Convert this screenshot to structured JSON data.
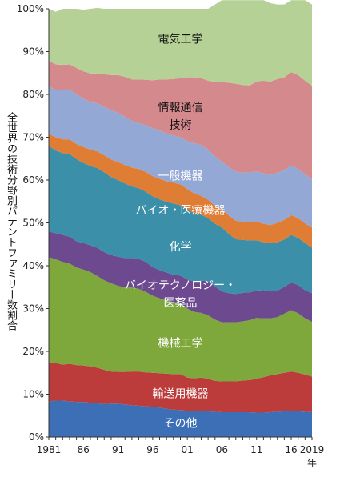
{
  "chart_data": {
    "type": "area",
    "stacked": true,
    "ylabel": "全世界の技術分野別パテントファミリー数割合",
    "xlabel": "",
    "year_suffix": "年",
    "ylim": [
      0,
      100
    ],
    "yticks": [
      "0%",
      "10%",
      "20%",
      "30%",
      "40%",
      "50%",
      "60%",
      "70%",
      "80%",
      "90%",
      "100%"
    ],
    "x": [
      1981,
      1982,
      1983,
      1984,
      1985,
      1986,
      1987,
      1988,
      1989,
      1990,
      1991,
      1992,
      1993,
      1994,
      1995,
      1996,
      1997,
      1998,
      1999,
      2000,
      2001,
      2002,
      2003,
      2004,
      2005,
      2006,
      2007,
      2008,
      2009,
      2010,
      2011,
      2012,
      2013,
      2014,
      2015,
      2016,
      2017,
      2018,
      2019
    ],
    "xtick_labels": [
      {
        "year": 1981,
        "label": "1981"
      },
      {
        "year": 1986,
        "label": "86"
      },
      {
        "year": 1991,
        "label": "91"
      },
      {
        "year": 1996,
        "label": "96"
      },
      {
        "year": 2001,
        "label": "01"
      },
      {
        "year": 2006,
        "label": "06"
      },
      {
        "year": 2011,
        "label": "11"
      },
      {
        "year": 2016,
        "label": "16"
      },
      {
        "year": 2019,
        "label": "2019"
      }
    ],
    "grid": false,
    "series": [
      {
        "name": "その他",
        "color": "#3d6fb6",
        "label_lines": [
          "その他"
        ],
        "label_color": "white",
        "label_year": 2000,
        "label_value": 3.3,
        "values": [
          8.3,
          8.5,
          8.5,
          8.3,
          8.2,
          8.2,
          8.0,
          7.9,
          7.7,
          7.8,
          7.8,
          7.6,
          7.4,
          7.3,
          7.2,
          7.0,
          6.9,
          6.6,
          6.4,
          6.3,
          6.1,
          6.1,
          6.0,
          6.0,
          5.9,
          5.8,
          5.8,
          5.8,
          5.8,
          5.8,
          5.7,
          5.7,
          5.8,
          5.9,
          6.0,
          6.1,
          6.0,
          5.9,
          5.8
        ]
      },
      {
        "name": "輸送用機器",
        "color": "#bb3c3b",
        "label_lines": [
          "輸送用機器"
        ],
        "label_color": "white",
        "label_year": 2000,
        "label_value": 10.2,
        "values": [
          9.2,
          8.8,
          8.4,
          8.8,
          8.6,
          8.5,
          8.5,
          8.3,
          8.0,
          7.5,
          7.4,
          7.6,
          7.9,
          8.0,
          7.9,
          8.0,
          8.0,
          8.2,
          8.3,
          8.4,
          7.8,
          7.6,
          7.9,
          7.6,
          7.2,
          7.2,
          7.2,
          7.2,
          7.4,
          7.5,
          7.9,
          8.3,
          8.6,
          8.8,
          9.0,
          9.2,
          9.0,
          8.7,
          8.3
        ]
      },
      {
        "name": "機械工学",
        "color": "#7ea83b",
        "label_lines": [
          "機械工学"
        ],
        "label_color": "white",
        "label_year": 2000,
        "label_value": 22.0,
        "values": [
          24.5,
          24.2,
          24.0,
          23.4,
          22.8,
          22.4,
          22.0,
          21.4,
          20.9,
          20.6,
          20.1,
          19.7,
          19.6,
          19.3,
          18.8,
          18.0,
          17.5,
          17.1,
          16.8,
          16.6,
          16.1,
          15.5,
          15.1,
          14.8,
          14.3,
          13.8,
          13.8,
          13.8,
          13.8,
          14.0,
          14.2,
          13.7,
          13.3,
          13.3,
          13.8,
          14.3,
          13.9,
          13.1,
          12.8
        ]
      },
      {
        "name": "バイオテクノロジー・医薬品",
        "color": "#6d4a90",
        "label_lines": [
          "バイオテクノロジー・",
          "医薬品"
        ],
        "label_color": "white",
        "label_year": 2000,
        "label_value": 33.5,
        "values": [
          6.0,
          6.1,
          6.3,
          6.3,
          6.1,
          6.2,
          6.3,
          6.6,
          6.6,
          6.6,
          6.8,
          6.9,
          6.9,
          7.0,
          7.0,
          6.7,
          6.6,
          6.5,
          6.4,
          6.4,
          6.8,
          7.1,
          7.5,
          8.0,
          7.8,
          7.2,
          6.8,
          6.6,
          6.7,
          6.5,
          6.4,
          6.6,
          6.3,
          6.2,
          6.3,
          6.5,
          6.6,
          6.6,
          6.7
        ]
      },
      {
        "name": "化学",
        "color": "#3b8fa8",
        "label_lines": [
          "化学"
        ],
        "label_color": "white",
        "label_year": 2000,
        "label_value": 44.5,
        "values": [
          20.0,
          19.3,
          19.1,
          19.3,
          19.2,
          18.7,
          18.5,
          18.6,
          18.6,
          18.2,
          17.9,
          17.4,
          16.7,
          16.5,
          16.4,
          16.5,
          16.5,
          16.5,
          16.6,
          16.4,
          16.3,
          16.0,
          15.4,
          14.7,
          14.6,
          14.9,
          13.8,
          12.8,
          12.3,
          12.1,
          11.7,
          11.2,
          11.2,
          11.3,
          11.0,
          11.1,
          11.0,
          11.0,
          10.6
        ]
      },
      {
        "name": "バイオ・医療機器",
        "color": "#e07d35",
        "label_lines": [
          "バイオ・医療機器"
        ],
        "label_color": "white",
        "label_year": 2000,
        "label_value": 53.0,
        "values": [
          2.8,
          3.1,
          3.2,
          3.4,
          3.5,
          3.7,
          3.8,
          3.9,
          4.0,
          4.1,
          4.2,
          4.3,
          4.4,
          4.5,
          4.6,
          4.7,
          4.8,
          4.8,
          4.9,
          4.9,
          4.8,
          4.6,
          4.4,
          4.3,
          4.2,
          4.3,
          4.3,
          4.3,
          4.3,
          4.3,
          4.4,
          4.3,
          4.3,
          4.5,
          4.6,
          4.6,
          4.6,
          4.6,
          4.7
        ]
      },
      {
        "name": "一般機器",
        "color": "#93a8d5",
        "label_lines": [
          "一般機器"
        ],
        "label_color": "white",
        "label_year": 2000,
        "label_value": 61.0,
        "values": [
          11.2,
          11.0,
          11.5,
          11.6,
          11.6,
          11.3,
          11.1,
          11.2,
          11.3,
          11.5,
          11.5,
          11.3,
          10.9,
          10.7,
          10.9,
          11.2,
          11.3,
          11.2,
          11.0,
          11.0,
          11.2,
          11.7,
          11.9,
          11.7,
          11.5,
          11.1,
          11.3,
          11.5,
          11.4,
          11.6,
          11.7,
          11.8,
          11.7,
          11.7,
          11.6,
          11.6,
          11.5,
          11.4,
          11.3
        ]
      },
      {
        "name": "情報通信技術",
        "color": "#d4898d",
        "label_lines": [
          "情報通信",
          "技術"
        ],
        "label_color": "dark",
        "label_year": 2000,
        "label_value": 75.0,
        "values": [
          5.9,
          6.0,
          5.9,
          5.9,
          6.2,
          6.4,
          6.7,
          7.0,
          7.6,
          8.2,
          8.8,
          9.3,
          9.7,
          10.2,
          10.6,
          11.2,
          11.9,
          12.6,
          13.2,
          13.8,
          14.9,
          15.4,
          15.6,
          16.1,
          17.4,
          18.6,
          19.7,
          20.5,
          20.5,
          20.3,
          21.0,
          21.6,
          21.8,
          21.9,
          21.7,
          21.8,
          21.9,
          21.9,
          21.8
        ]
      },
      {
        "name": "電気工学",
        "color": "#b6d196",
        "label_lines": [
          "電気工学"
        ],
        "label_color": "dark",
        "label_year": 2000,
        "label_value": 93.0,
        "values": [
          12.1,
          12.3,
          13.1,
          13.0,
          13.8,
          14.4,
          15.1,
          15.3,
          15.3,
          15.5,
          15.5,
          15.9,
          16.5,
          16.5,
          16.6,
          16.7,
          16.5,
          16.5,
          16.4,
          16.2,
          16.0,
          16.0,
          16.2,
          16.8,
          18.1,
          19.1,
          19.3,
          19.5,
          19.8,
          19.9,
          19.0,
          18.8,
          18.3,
          17.4,
          17.0,
          16.8,
          17.5,
          18.8,
          19.0
        ]
      }
    ]
  }
}
